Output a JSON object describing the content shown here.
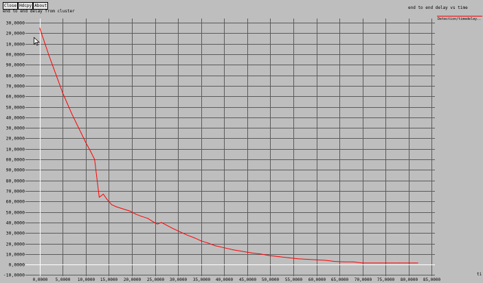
{
  "toolbar": {
    "close_label": "Close",
    "hdcpy_label": "Hdcpy",
    "about_label": "About"
  },
  "icons": {
    "cursor": "mouse-pointer-icon"
  },
  "colors": {
    "background": "#bebebe",
    "grid": "#5a5a5a",
    "zero_axis": "#ffffff",
    "series": "#ff0000",
    "button_face": "#e6e6e6",
    "text": "#000000"
  },
  "chart_data": {
    "type": "line",
    "title": "end to end delay vs time",
    "ylabel": "end to end delay from cluster",
    "xlabel": "ti",
    "xlim": [
      -3.1,
      85.7
    ],
    "ylim": [
      -11,
      234
    ],
    "grid": true,
    "legend_position": "top-right",
    "x_ticks": [
      0,
      5,
      10,
      15,
      20,
      25,
      30,
      35,
      40,
      45,
      50,
      55,
      60,
      65,
      70,
      75,
      80,
      85
    ],
    "x_tick_labels": [
      "0,0000",
      "5,0000",
      "10,0000",
      "15,0000",
      "20,0000",
      "25,0000",
      "30,0000",
      "35,0000",
      "40,0000",
      "45,0000",
      "50,0000",
      "55,0000",
      "60,0000",
      "65,0000",
      "70,0000",
      "75,0000",
      "80,0000",
      "85,0000"
    ],
    "y_ticks": [
      230,
      220,
      210,
      200,
      190,
      180,
      170,
      160,
      150,
      140,
      130,
      120,
      110,
      100,
      90,
      80,
      70,
      60,
      50,
      40,
      30,
      20,
      10,
      0,
      -10
    ],
    "y_tick_labels": [
      "30,0000",
      "20,0000",
      "10,0000",
      "00,0000",
      "90,0000",
      "80,0000",
      "70,0000",
      "60,0000",
      "50,0000",
      "40,0000",
      "30,0000",
      "20,0000",
      "10,0000",
      "00,0000",
      "90,0000",
      "80,0000",
      "70,0000",
      "60,0000",
      "50,0000",
      "40,0000",
      "30,0000",
      "20,0000",
      "10,0000",
      "0,0000",
      "-10,0000"
    ],
    "series": [
      {
        "name": "Detection/timedelay..",
        "color": "#ff0000",
        "x": [
          0,
          1.0,
          2.0,
          3.0,
          4.0,
          5.0,
          6.0,
          7.0,
          8.0,
          9.0,
          10.0,
          11.0,
          11.9,
          12.9,
          13.8,
          14.6,
          15.6,
          16.6,
          18.0,
          19.5,
          20.8,
          22.0,
          23.4,
          24.5,
          25.5,
          26.4,
          27.5,
          29.0,
          30.5,
          32.0,
          33.5,
          35.0,
          36.5,
          38.0,
          40.0,
          42.0,
          44.0,
          46.0,
          48.0,
          50.0,
          52.0,
          54.0,
          56.0,
          58.0,
          60.0,
          62.0,
          64.0,
          66.0,
          68.0,
          70.0,
          74.0,
          78.0,
          82.0
        ],
        "y": [
          225,
          212,
          199,
          187,
          175,
          163,
          153,
          143,
          134,
          125,
          116,
          108,
          100,
          64,
          67,
          62,
          57,
          55,
          53,
          51,
          48,
          46,
          44,
          41,
          38.5,
          40,
          37.5,
          34,
          31,
          28,
          25.5,
          22.5,
          20.5,
          18,
          16,
          14,
          12.5,
          11,
          10,
          8.5,
          7.5,
          6.5,
          5.5,
          5,
          4.5,
          4,
          3,
          2.5,
          2.5,
          1.5,
          1.5,
          1.5,
          1.5
        ]
      }
    ]
  }
}
